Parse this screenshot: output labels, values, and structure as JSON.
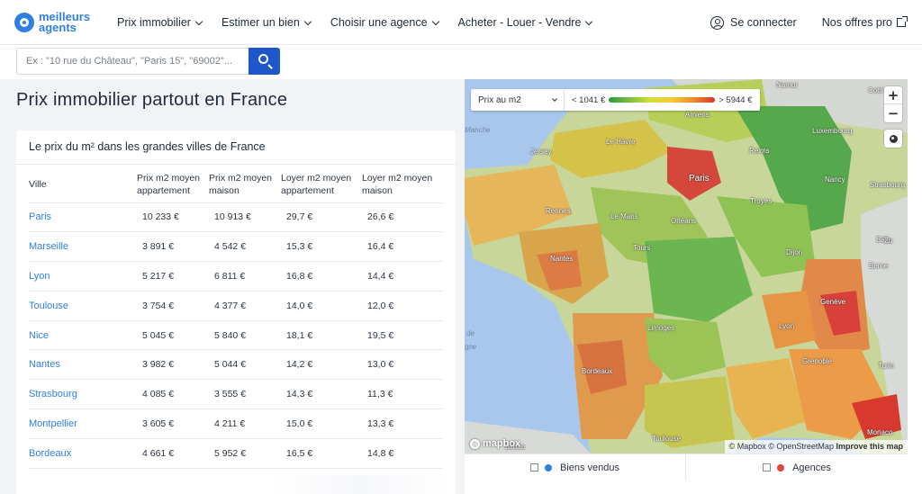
{
  "logo": {
    "line1": "meilleurs",
    "line2": "agents"
  },
  "nav": [
    {
      "label": "Prix immobilier"
    },
    {
      "label": "Estimer un bien"
    },
    {
      "label": "Choisir une agence"
    },
    {
      "label": "Acheter - Louer - Vendre"
    }
  ],
  "header": {
    "login_label": "Se connecter",
    "offers_label": "Nos offres pro"
  },
  "search": {
    "placeholder": "Ex : \"10 rue du Château\", \"Paris 15\", \"69002\"...",
    "value": ""
  },
  "page": {
    "title": "Prix immobilier partout en France"
  },
  "table": {
    "title": "Le prix du m² dans les grandes villes de France",
    "headers": {
      "city": "Ville",
      "apt_price": "Prix m2 moyen appartement",
      "house_price": "Prix m2 moyen maison",
      "apt_rent": "Loyer m2 moyen appartement",
      "house_rent": "Loyer m2 moyen maison"
    },
    "rows": [
      {
        "city": "Paris",
        "apt_price": "10 233 €",
        "house_price": "10 913 €",
        "apt_rent": "29,7 €",
        "house_rent": "26,6 €"
      },
      {
        "city": "Marseille",
        "apt_price": "3 891 €",
        "house_price": "4 542 €",
        "apt_rent": "15,3 €",
        "house_rent": "16,4 €"
      },
      {
        "city": "Lyon",
        "apt_price": "5 217 €",
        "house_price": "6 811 €",
        "apt_rent": "16,8 €",
        "house_rent": "14,4 €"
      },
      {
        "city": "Toulouse",
        "apt_price": "3 754 €",
        "house_price": "4 377 €",
        "apt_rent": "14,0 €",
        "house_rent": "12,0 €"
      },
      {
        "city": "Nice",
        "apt_price": "5 045 €",
        "house_price": "5 840 €",
        "apt_rent": "18,1 €",
        "house_rent": "19,5 €"
      },
      {
        "city": "Nantes",
        "apt_price": "3 982 €",
        "house_price": "5 044 €",
        "apt_rent": "14,2 €",
        "house_rent": "13,0 €"
      },
      {
        "city": "Strasbourg",
        "apt_price": "4 085 €",
        "house_price": "3 555 €",
        "apt_rent": "14,3 €",
        "house_rent": "11,3 €"
      },
      {
        "city": "Montpellier",
        "apt_price": "3 605 €",
        "house_price": "4 211 €",
        "apt_rent": "15,0 €",
        "house_rent": "13,3 €"
      },
      {
        "city": "Bordeaux",
        "apt_price": "4 661 €",
        "house_price": "5 952 €",
        "apt_rent": "16,5 €",
        "house_rent": "14,8 €"
      }
    ]
  },
  "map": {
    "select_label": "Prix au m2",
    "legend_min": "< 1041 €",
    "legend_max": "> 5944 €",
    "zoom_in": "+",
    "zoom_out": "−",
    "mapbox_logo": "mapbox",
    "attribution": {
      "prefix": "© Mapbox © OpenStreetMap",
      "improve": "Improve this map"
    },
    "colors": {
      "low": "#2b9a3c",
      "mid": "#d9df3e",
      "high": "#d9352a",
      "sea": "#a9c7ec"
    },
    "labels": [
      {
        "text": "Namur"
      },
      {
        "text": "Amiens"
      },
      {
        "text": "Luxembourg"
      },
      {
        "text": "Jersey"
      },
      {
        "text": "Le Havre"
      },
      {
        "text": "Reims"
      },
      {
        "text": "Paris"
      },
      {
        "text": "Nancy"
      },
      {
        "text": "Strasbourg"
      },
      {
        "text": "Troyes"
      },
      {
        "text": "Rennes"
      },
      {
        "text": "Le Mans"
      },
      {
        "text": "Orléans"
      },
      {
        "text": "Tours"
      },
      {
        "text": "Nantes"
      },
      {
        "text": "Dijon"
      },
      {
        "text": "Bâle"
      },
      {
        "text": "Berne"
      },
      {
        "text": "Genève"
      },
      {
        "text": "Limoges"
      },
      {
        "text": "Lyon"
      },
      {
        "text": "Grenoble"
      },
      {
        "text": "Bordeaux"
      },
      {
        "text": "Turin"
      },
      {
        "text": "Toulouse"
      },
      {
        "text": "Monaco"
      },
      {
        "text": "Bilbao"
      },
      {
        "text": "Cobl"
      },
      {
        "text": "Zu"
      },
      {
        "text": "Manche"
      },
      {
        "text": "de"
      },
      {
        "text": "gne"
      }
    ]
  },
  "toggles": [
    {
      "label": "Biens vendus"
    },
    {
      "label": "Agences"
    }
  ]
}
